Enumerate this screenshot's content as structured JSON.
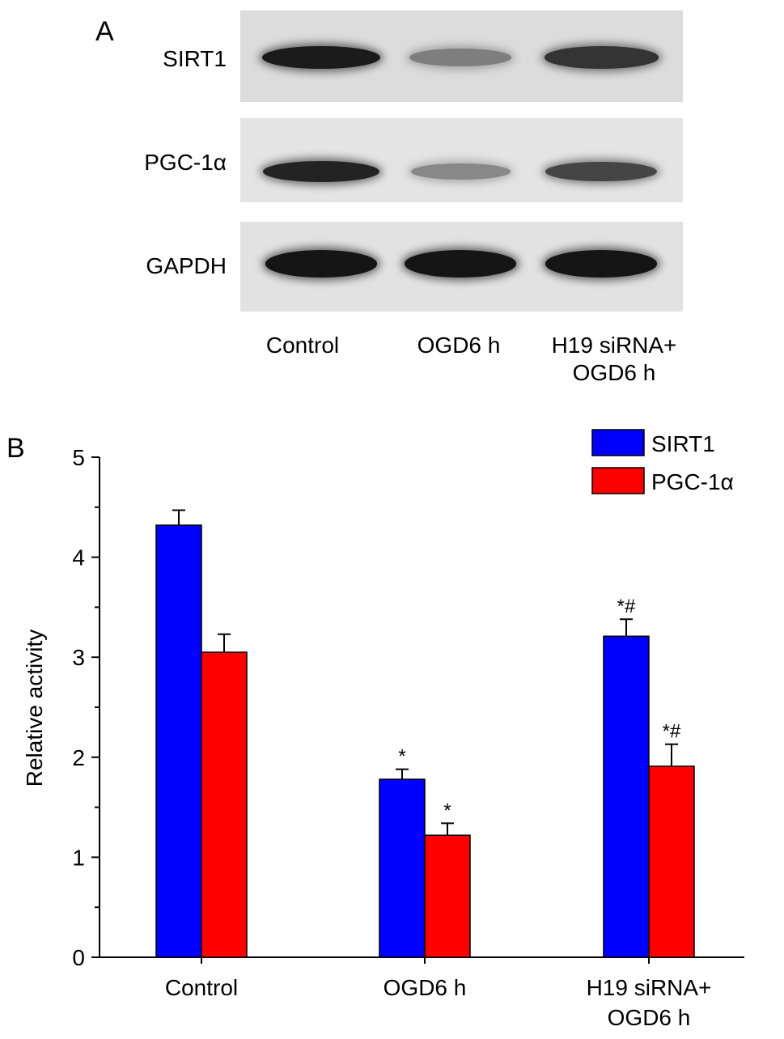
{
  "panel_a": {
    "letter": "A",
    "rows": [
      {
        "label": "SIRT1",
        "intensities": [
          0.92,
          0.45,
          0.8
        ]
      },
      {
        "label": "PGC-1α",
        "intensities": [
          0.88,
          0.4,
          0.72
        ]
      },
      {
        "label": "GAPDH",
        "intensities": [
          0.95,
          0.95,
          0.95
        ]
      }
    ],
    "lanes": [
      {
        "line1": "Control",
        "line2": ""
      },
      {
        "line1": "OGD6 h",
        "line2": ""
      },
      {
        "line1": "H19 siRNA+",
        "line2": "OGD6 h"
      }
    ]
  },
  "panel_b": {
    "letter": "B"
  },
  "chart_data": {
    "type": "bar",
    "title": "",
    "xlabel": "",
    "ylabel": "Relative activity",
    "ylim": [
      0,
      5
    ],
    "yticks": [
      "0",
      "1",
      "2",
      "3",
      "4",
      "5"
    ],
    "categories": [
      {
        "line1": "Control",
        "line2": ""
      },
      {
        "line1": "OGD6 h",
        "line2": ""
      },
      {
        "line1": "H19 siRNA+",
        "line2": "OGD6 h"
      }
    ],
    "legend_position": "top-right",
    "series": [
      {
        "name": "SIRT1",
        "color": "#0000ff",
        "values": [
          4.32,
          1.78,
          3.21
        ],
        "errors": [
          0.15,
          0.1,
          0.17
        ],
        "annotations": [
          "",
          "*",
          "*#"
        ]
      },
      {
        "name": "PGC-1α",
        "color": "#ff0000",
        "values": [
          3.05,
          1.22,
          1.91
        ],
        "errors": [
          0.18,
          0.12,
          0.22
        ],
        "annotations": [
          "",
          "*",
          "*#"
        ]
      }
    ]
  }
}
